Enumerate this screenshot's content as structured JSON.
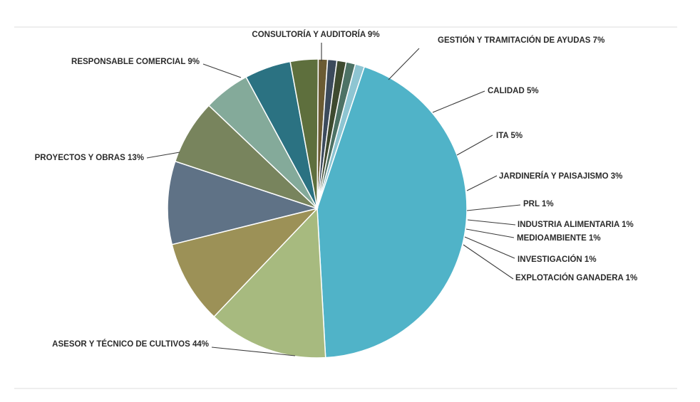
{
  "chart_data": {
    "type": "pie",
    "title": "",
    "legend": "none",
    "slices": [
      {
        "label": "CONSULTORÍA Y AUDITORÍA 9%",
        "value": 9,
        "color": "#5f7286"
      },
      {
        "label": "GESTIÓN Y TRAMITACIÓN DE AYUDAS 7%",
        "value": 7,
        "color": "#78845d"
      },
      {
        "label": "CALIDAD 5%",
        "value": 5,
        "color": "#84aa9a"
      },
      {
        "label": "ITA 5%",
        "value": 5,
        "color": "#2b7282"
      },
      {
        "label": "JARDINERÍA Y PAISAJISMO 3%",
        "value": 3,
        "color": "#5e6f3d"
      },
      {
        "label": "PRL 1%",
        "value": 1,
        "color": "#6b5b33"
      },
      {
        "label": "INDUSTRIA ALIMENTARIA 1%",
        "value": 1,
        "color": "#3c4a5b"
      },
      {
        "label": "MEDIOAMBIENTE 1%",
        "value": 1,
        "color": "#3e4a2f"
      },
      {
        "label": "INVESTIGACIÓN 1%",
        "value": 1,
        "color": "#4d7265"
      },
      {
        "label": "EXPLOTACIÓN GANADERA 1%",
        "value": 1,
        "color": "#8ec5d2"
      },
      {
        "label": "ASESOR Y TÉCNICO DE CULTIVOS 44%",
        "value": 44,
        "color": "#50b3c8"
      },
      {
        "label": "PROYECTOS Y OBRAS 13%",
        "value": 13,
        "color": "#a7ba7f"
      },
      {
        "label": "RESPONSABLE COMERCIAL 9%",
        "value": 9,
        "color": "#9c9157"
      }
    ]
  }
}
